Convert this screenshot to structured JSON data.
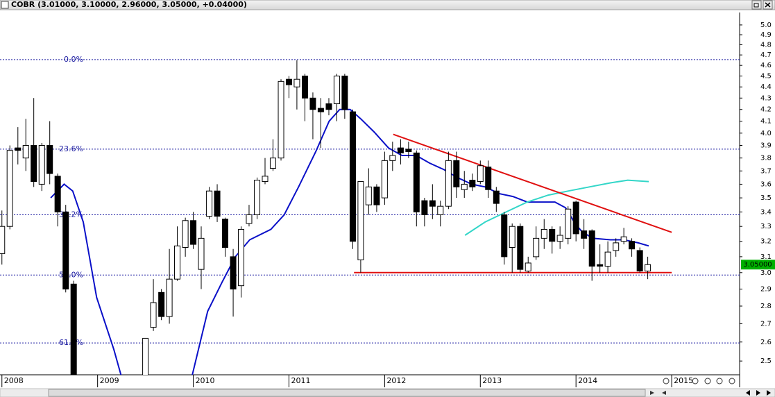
{
  "chart_data": {
    "type": "candlestick",
    "title": "COBR (3.01000, 3.10000, 2.96000, 3.05000, +0.04000)",
    "log_scale": true,
    "xlim": [
      2007.98,
      2015.71
    ],
    "xticks": [
      2008,
      2009,
      2010,
      2011,
      2012,
      2013,
      2014,
      2015
    ],
    "ylim": [
      2.43,
      5.13
    ],
    "yticks": [
      2.5,
      2.6,
      2.7,
      2.8,
      2.9,
      {
        "value": 3,
        "label": "3.0"
      },
      3.1,
      3.2,
      3.3,
      3.4,
      3.5,
      3.6,
      3.7,
      3.8,
      3.9,
      {
        "value": 4,
        "label": "4.0"
      },
      4.1,
      4.2,
      4.3,
      4.4,
      4.5,
      4.6,
      4.7,
      4.8,
      4.9,
      {
        "value": 5,
        "label": "5.0"
      }
    ],
    "up_color": "#ffffff",
    "down_color": "#000000",
    "x": [
      2008,
      2008.083,
      2008.167,
      2008.25,
      2008.333,
      2008.417,
      2008.5,
      2008.583,
      2008.667,
      2008.75,
      2009.5,
      2009.583,
      2009.667,
      2009.75,
      2009.833,
      2009.917,
      2010,
      2010.083,
      2010.167,
      2010.25,
      2010.333,
      2010.417,
      2010.5,
      2010.583,
      2010.667,
      2010.75,
      2010.833,
      2010.917,
      2011,
      2011.083,
      2011.167,
      2011.25,
      2011.333,
      2011.417,
      2011.5,
      2011.583,
      2011.667,
      2011.75,
      2011.833,
      2011.917,
      2012,
      2012.083,
      2012.167,
      2012.25,
      2012.333,
      2012.417,
      2012.5,
      2012.583,
      2012.667,
      2012.75,
      2012.833,
      2012.917,
      2013,
      2013.083,
      2013.167,
      2013.25,
      2013.333,
      2013.417,
      2013.5,
      2013.583,
      2013.667,
      2013.75,
      2013.833,
      2013.917,
      2014,
      2014.083,
      2014.167,
      2014.25,
      2014.333,
      2014.417,
      2014.5,
      2014.583,
      2014.667,
      2014.75
    ],
    "open": [
      3.12,
      3.3,
      3.88,
      3.8,
      3.9,
      3.6,
      3.9,
      3.66,
      3.4,
      2.93,
      2.35,
      2.68,
      2.88,
      2.74,
      2.96,
      3.16,
      3.34,
      3.02,
      3.37,
      3.55,
      3.35,
      3.1,
      2.92,
      3.32,
      3.38,
      3.62,
      3.72,
      3.8,
      4.47,
      4.4,
      4.5,
      4.3,
      4.21,
      4.25,
      4.25,
      4.5,
      4.18,
      3.08,
      3.45,
      3.58,
      3.5,
      3.78,
      3.88,
      3.87,
      3.84,
      3.48,
      3.48,
      3.38,
      3.44,
      3.78,
      3.56,
      3.63,
      3.62,
      3.73,
      3.55,
      3.38,
      3.16,
      3.3,
      3.01,
      3.1,
      3.22,
      3.28,
      3.2,
      3.22,
      3.47,
      3.27,
      3.27,
      3.05,
      3.04,
      3.14,
      3.2,
      3.2,
      3.14,
      3.01
    ],
    "high": [
      3.41,
      3.9,
      4.05,
      4.12,
      4.3,
      3.92,
      4.1,
      3.68,
      3.45,
      2.95,
      2.62,
      2.96,
      2.9,
      3.15,
      3.3,
      3.36,
      3.4,
      3.3,
      3.58,
      3.6,
      3.36,
      3.15,
      3.3,
      3.45,
      3.65,
      3.8,
      3.95,
      4.47,
      4.5,
      4.65,
      4.52,
      4.35,
      4.3,
      4.3,
      4.52,
      4.52,
      4.2,
      3.62,
      3.72,
      3.6,
      3.85,
      3.93,
      3.95,
      3.93,
      3.86,
      3.5,
      3.6,
      3.48,
      3.85,
      3.85,
      3.7,
      3.68,
      3.78,
      3.78,
      3.58,
      3.4,
      3.32,
      3.32,
      3.1,
      3.3,
      3.35,
      3.3,
      3.3,
      3.44,
      3.48,
      3.35,
      3.28,
      3.18,
      3.2,
      3.22,
      3.29,
      3.22,
      3.16,
      3.1
    ],
    "low": [
      3.05,
      3.28,
      3.75,
      3.7,
      3.58,
      3.55,
      3.6,
      3.3,
      2.88,
      2.3,
      2.3,
      2.66,
      2.72,
      2.7,
      2.95,
      3.1,
      3.15,
      2.9,
      3.35,
      3.33,
      3.1,
      2.74,
      2.85,
      3.3,
      3.35,
      3.6,
      3.7,
      3.78,
      4.3,
      4.2,
      4.1,
      3.95,
      3.88,
      4.15,
      4.1,
      4.12,
      3.15,
      3.0,
      3.38,
      3.4,
      3.45,
      3.7,
      3.75,
      3.8,
      3.3,
      3.3,
      3.35,
      3.3,
      3.42,
      3.5,
      3.5,
      3.55,
      3.6,
      3.5,
      3.4,
      3.05,
      3.0,
      3.0,
      3.0,
      3.08,
      3.15,
      3.12,
      3.15,
      3.18,
      3.2,
      3.15,
      2.95,
      3.0,
      3.0,
      3.1,
      3.18,
      3.1,
      3.0,
      2.96
    ],
    "close": [
      3.3,
      3.86,
      3.86,
      3.9,
      3.62,
      3.9,
      3.68,
      3.4,
      2.9,
      2.35,
      2.62,
      2.82,
      2.74,
      2.96,
      3.17,
      3.34,
      3.18,
      3.22,
      3.55,
      3.37,
      3.16,
      2.9,
      3.28,
      3.38,
      3.63,
      3.66,
      3.8,
      4.45,
      4.42,
      4.47,
      4.3,
      4.2,
      4.18,
      4.2,
      4.5,
      4.2,
      3.2,
      3.62,
      3.58,
      3.45,
      3.78,
      3.82,
      3.84,
      3.85,
      3.4,
      3.38,
      3.44,
      3.44,
      3.78,
      3.58,
      3.6,
      3.58,
      3.74,
      3.56,
      3.46,
      3.1,
      3.3,
      3.02,
      3.06,
      3.22,
      3.28,
      3.2,
      3.24,
      3.42,
      3.25,
      3.22,
      3.04,
      3.04,
      3.13,
      3.19,
      3.23,
      3.15,
      3.01,
      3.05
    ],
    "lines": [
      {
        "color": "#0a10c8",
        "x": [
          2008.51,
          2008.65,
          2008.74,
          2008.85,
          2008.99,
          2009.17,
          2009.25,
          2009.6,
          2009.99,
          2010.15,
          2010.3,
          2010.44,
          2010.59,
          2010.81,
          2010.95,
          2011.1,
          2011.28,
          2011.42,
          2011.53,
          2011.64,
          2011.75,
          2011.89,
          2012.04,
          2012.18,
          2012.33,
          2012.47,
          2012.62,
          2012.76,
          2012.91,
          2013.05,
          2013.2,
          2013.34,
          2013.49,
          2013.78,
          2013.89,
          2014.0,
          2014.07,
          2014.18,
          2014.36,
          2014.5,
          2014.65,
          2014.76
        ],
        "values": [
          3.5,
          3.6,
          3.55,
          3.33,
          2.85,
          2.56,
          2.42,
          null,
          2.43,
          2.77,
          2.94,
          3.1,
          3.21,
          3.28,
          3.38,
          3.58,
          3.85,
          4.1,
          4.2,
          4.2,
          4.12,
          4.01,
          3.88,
          3.82,
          3.82,
          3.76,
          3.71,
          3.65,
          3.6,
          3.58,
          3.53,
          3.51,
          3.47,
          3.47,
          3.43,
          3.31,
          3.26,
          3.22,
          3.21,
          3.21,
          3.19,
          3.17
        ]
      },
      {
        "color": "#33d6c8",
        "x": [
          2012.84,
          2013.05,
          2013.27,
          2013.49,
          2013.71,
          2013.92,
          2014.14,
          2014.36,
          2014.54,
          2014.76
        ],
        "values": [
          3.24,
          3.33,
          3.4,
          3.47,
          3.52,
          3.55,
          3.58,
          3.61,
          3.63,
          3.62
        ]
      },
      {
        "color": "#e01010",
        "x": [
          2012.09,
          2015.0
        ],
        "values": [
          3.99,
          3.26
        ]
      },
      {
        "color": "#e01010",
        "x": [
          2011.68,
          2015.0
        ],
        "values": [
          3.0,
          3.0
        ]
      }
    ],
    "fib_color": "#1a1aa0",
    "fib_levels": [
      {
        "label": "0.0%",
        "value": 4.655
      },
      {
        "label": "23.6%",
        "value": 3.87
      },
      {
        "label": "38.2%",
        "value": 3.38
      },
      {
        "label": "50.0%",
        "value": 2.985
      },
      {
        "label": "61.8%",
        "value": 2.595
      }
    ],
    "last_label": "3.05000",
    "last_color": "#00b000"
  }
}
